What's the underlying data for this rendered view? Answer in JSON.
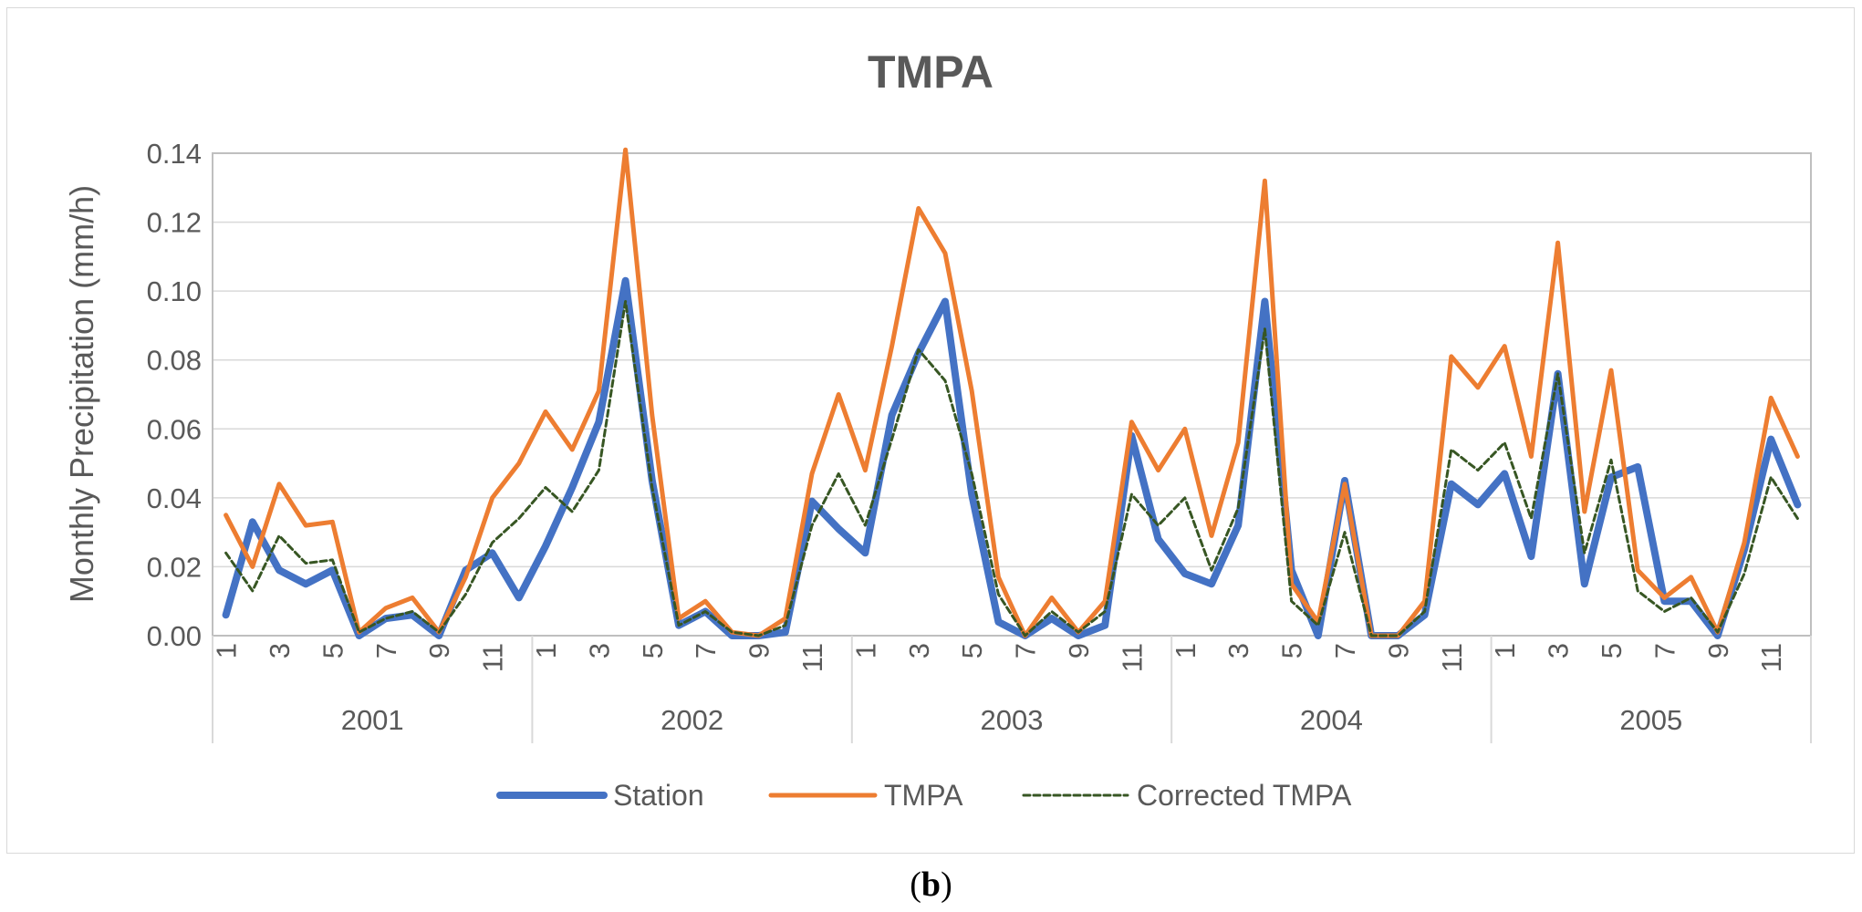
{
  "chart_data": {
    "type": "line",
    "title": "TMPA",
    "xlabel": "",
    "ylabel": "Monthly Precipitation (mm/h)",
    "ylim": [
      0,
      0.14
    ],
    "yticks": [
      "0.00",
      "0.02",
      "0.04",
      "0.06",
      "0.08",
      "0.10",
      "0.12",
      "0.14"
    ],
    "month_tick_labels": [
      "1",
      "3",
      "5",
      "7",
      "9",
      "11"
    ],
    "years": [
      "2001",
      "2002",
      "2003",
      "2004",
      "2005"
    ],
    "grid": true,
    "legend_position": "bottom",
    "series": [
      {
        "name": "Station",
        "color": "#4472c4",
        "style": "solid-thick",
        "values": [
          0.006,
          0.033,
          0.019,
          0.015,
          0.019,
          0.0,
          0.005,
          0.006,
          0.0,
          0.019,
          0.024,
          0.011,
          0.026,
          0.043,
          0.062,
          0.103,
          0.045,
          0.003,
          0.007,
          0.0,
          0.0,
          0.001,
          0.039,
          0.031,
          0.024,
          0.064,
          0.082,
          0.097,
          0.041,
          0.004,
          0.0,
          0.005,
          0.0,
          0.003,
          0.058,
          0.028,
          0.018,
          0.015,
          0.032,
          0.097,
          0.019,
          0.0,
          0.045,
          0.0,
          0.0,
          0.006,
          0.044,
          0.038,
          0.047,
          0.023,
          0.076,
          0.015,
          0.046,
          0.049,
          0.01,
          0.01,
          0.0,
          0.025,
          0.057,
          0.038
        ]
      },
      {
        "name": "TMPA",
        "color": "#ed7d31",
        "style": "solid",
        "values": [
          0.035,
          0.02,
          0.044,
          0.032,
          0.033,
          0.001,
          0.008,
          0.011,
          0.001,
          0.017,
          0.04,
          0.05,
          0.065,
          0.054,
          0.071,
          0.141,
          0.064,
          0.005,
          0.01,
          0.001,
          0.0,
          0.005,
          0.047,
          0.07,
          0.048,
          0.084,
          0.124,
          0.111,
          0.071,
          0.017,
          0.0,
          0.011,
          0.001,
          0.01,
          0.062,
          0.048,
          0.06,
          0.029,
          0.056,
          0.132,
          0.015,
          0.004,
          0.044,
          0.0,
          0.0,
          0.01,
          0.081,
          0.072,
          0.084,
          0.052,
          0.114,
          0.036,
          0.077,
          0.019,
          0.011,
          0.017,
          0.001,
          0.027,
          0.069,
          0.052
        ]
      },
      {
        "name": "Corrected TMPA",
        "color": "#375623",
        "style": "dashed",
        "values": [
          0.024,
          0.013,
          0.029,
          0.021,
          0.022,
          0.001,
          0.005,
          0.007,
          0.001,
          0.012,
          0.027,
          0.034,
          0.043,
          0.036,
          0.048,
          0.097,
          0.043,
          0.003,
          0.007,
          0.001,
          0.0,
          0.003,
          0.032,
          0.047,
          0.032,
          0.057,
          0.083,
          0.074,
          0.047,
          0.012,
          0.0,
          0.007,
          0.001,
          0.007,
          0.041,
          0.032,
          0.04,
          0.019,
          0.037,
          0.089,
          0.01,
          0.003,
          0.03,
          0.0,
          0.0,
          0.007,
          0.054,
          0.048,
          0.056,
          0.034,
          0.076,
          0.024,
          0.051,
          0.013,
          0.007,
          0.011,
          0.001,
          0.018,
          0.046,
          0.034
        ]
      }
    ]
  },
  "caption": {
    "open": "(",
    "letter": "b",
    "close": ")"
  }
}
